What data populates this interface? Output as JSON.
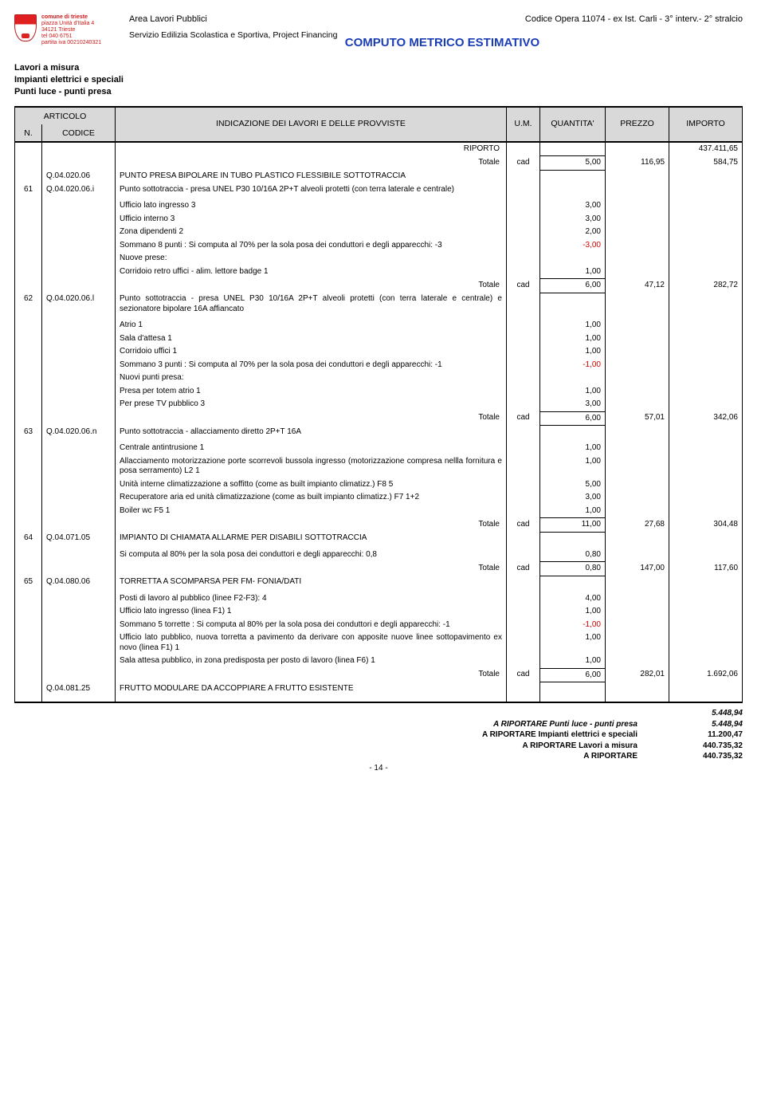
{
  "org": {
    "name": "comune di trieste",
    "addr": "piazza Unità d'Italia 4",
    "cap": "34121 Trieste",
    "tel": "tel 040 6751",
    "piva": "partita iva 00210240321"
  },
  "header": {
    "area": "Area Lavori Pubblici",
    "servizio": "Servizio Edilizia Scolastica e Sportiva, Project Financing",
    "opera": "Codice Opera 11074 - ex Ist. Carli -  3°  interv.- 2° stralcio"
  },
  "title": "COMPUTO METRICO ESTIMATIVO",
  "groups": {
    "g1": "Lavori a misura",
    "g2": "Impianti elettrici e speciali",
    "g3": "Punti luce - punti presa"
  },
  "th": {
    "articolo": "ARTICOLO",
    "n": "N.",
    "codice": "CODICE",
    "indicazione": "INDICAZIONE DEI LAVORI E DELLE PROVVISTE",
    "um": "U.M.",
    "qta": "QUANTITA'",
    "prezzo": "PREZZO",
    "importo": "IMPORTO"
  },
  "labels": {
    "riporto": "RIPORTO",
    "totale": "Totale",
    "cad": "cad",
    "ariportare": "A RIPORTARE"
  },
  "riporto_importo": "437.411,65",
  "rows": {
    "r0": {
      "totale_um": "cad",
      "qta": "5,00",
      "prz": "116,95",
      "imp": "584,75"
    },
    "a61": {
      "n": "61",
      "cod_parent": "Q.04.020.06",
      "cod": "Q.04.020.06.i",
      "desc_parent": "PUNTO PRESA BIPOLARE IN TUBO PLASTICO FLESSIBILE SOTTOTRACCIA",
      "desc": "Punto sottotraccia - presa UNEL P30 10/16A 2P+T alveoli protetti (con terra laterale e centrale)",
      "lines": [
        {
          "t": "Ufficio lato ingresso 3",
          "q": "3,00"
        },
        {
          "t": "Ufficio interno 3",
          "q": "3,00"
        },
        {
          "t": "Zona dipendenti 2",
          "q": "2,00"
        },
        {
          "t": "Sommano 8 punti : Si computa al 70% per la sola posa dei conduttori e degli apparecchi: -3",
          "q": "-3,00",
          "neg": true
        },
        {
          "t": "Nuove prese:"
        },
        {
          "t": "Corridoio retro uffici - alim. lettore badge 1",
          "q": "1,00"
        }
      ],
      "tot": {
        "um": "cad",
        "qta": "6,00",
        "prz": "47,12",
        "imp": "282,72"
      }
    },
    "a62": {
      "n": "62",
      "cod": "Q.04.020.06.l",
      "desc": "Punto sottotraccia - presa UNEL P30 10/16A 2P+T alveoli protetti (con terra laterale e centrale) e sezionatore bipolare 16A affiancato",
      "lines": [
        {
          "t": "Atrio 1",
          "q": "1,00"
        },
        {
          "t": "Sala d'attesa 1",
          "q": "1,00"
        },
        {
          "t": "Corridoio uffici 1",
          "q": "1,00"
        },
        {
          "t": "Sommano 3 punti : Si computa al 70% per la sola posa dei conduttori e degli apparecchi: -1",
          "q": "-1,00",
          "neg": true
        },
        {
          "t": "Nuovi punti presa:"
        },
        {
          "t": "Presa per totem atrio 1",
          "q": "1,00"
        },
        {
          "t": "Per prese TV pubblico 3",
          "q": "3,00"
        }
      ],
      "tot": {
        "um": "cad",
        "qta": "6,00",
        "prz": "57,01",
        "imp": "342,06"
      }
    },
    "a63": {
      "n": "63",
      "cod": "Q.04.020.06.n",
      "desc": "Punto sottotraccia - allacciamento diretto 2P+T 16A",
      "lines": [
        {
          "t": "Centrale antintrusione 1",
          "q": "1,00"
        },
        {
          "t": "Allacciamento motorizzazione porte scorrevoli bussola ingresso (motorizzazione compresa nellla fornitura e posa serramento) L2 1",
          "q": "1,00"
        },
        {
          "t": "Unità interne climatizzazione a soffitto (come as built impianto climatizz.) F8 5",
          "q": "5,00"
        },
        {
          "t": "Recuperatore aria ed unità climatizzazione (come as built impianto climatizz.) F7 1+2",
          "q": "3,00"
        },
        {
          "t": "Boiler wc F5 1",
          "q": "1,00"
        }
      ],
      "tot": {
        "um": "cad",
        "qta": "11,00",
        "prz": "27,68",
        "imp": "304,48"
      }
    },
    "a64": {
      "n": "64",
      "cod": "Q.04.071.05",
      "desc": "IMPIANTO DI CHIAMATA ALLARME PER DISABILI SOTTOTRACCIA",
      "lines": [
        {
          "t": "Si computa al 80% per la sola posa dei conduttori e degli apparecchi: 0,8",
          "q": "0,80"
        }
      ],
      "tot": {
        "um": "cad",
        "qta": "0,80",
        "prz": "147,00",
        "imp": "117,60"
      }
    },
    "a65": {
      "n": "65",
      "cod": "Q.04.080.06",
      "desc": "TORRETTA A SCOMPARSA PER FM- FONIA/DATI",
      "lines": [
        {
          "t": "Posti di lavoro al pubblico (linee F2-F3): 4",
          "q": "4,00"
        },
        {
          "t": "Ufficio lato ingresso (linea F1) 1",
          "q": "1,00"
        },
        {
          "t": "Sommano 5 torrette : Si computa al 80% per la sola posa dei conduttori e degli apparecchi: -1",
          "q": "-1,00",
          "neg": true
        },
        {
          "t": "Ufficio lato pubblico, nuova torretta a pavimento da derivare con apposite nuove linee sottopavimento ex novo (linea F1) 1",
          "q": "1,00"
        },
        {
          "t": "Sala attesa pubblico, in zona predisposta per posto di lavoro (linea F6) 1",
          "q": "1,00"
        }
      ],
      "tot": {
        "um": "cad",
        "qta": "6,00",
        "prz": "282,01",
        "imp": "1.692,06"
      }
    },
    "a66": {
      "cod": "Q.04.081.25",
      "desc": "FRUTTO MODULARE DA ACCOPPIARE A FRUTTO ESISTENTE"
    }
  },
  "footer": {
    "lines": [
      {
        "label": "A RIPORTARE Punti luce - punti presa",
        "val": "5.448,94",
        "italic": true
      },
      {
        "label": "A RIPORTARE Impianti elettrici e speciali",
        "val": "11.200,47"
      },
      {
        "label": "A RIPORTARE Lavori a misura",
        "val": "440.735,32"
      },
      {
        "label": "A RIPORTARE",
        "val": "440.735,32"
      }
    ],
    "extra_top": "5.448,94",
    "page": "- 14 -"
  }
}
